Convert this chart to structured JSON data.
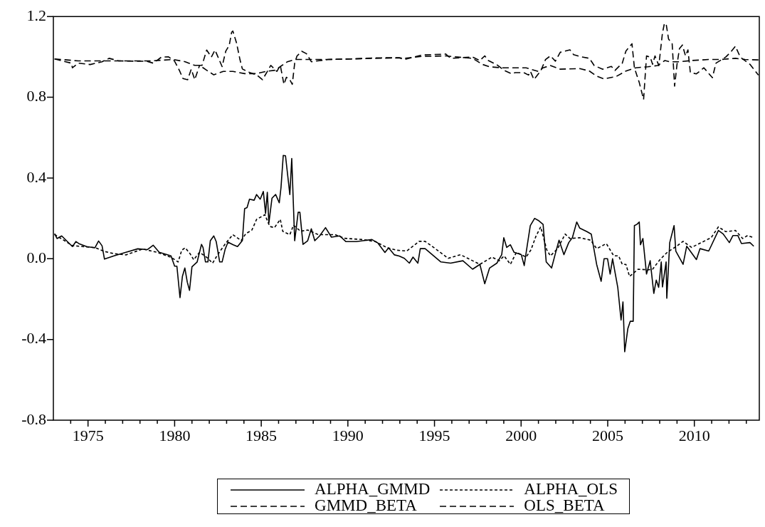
{
  "chart_data": {
    "type": "line",
    "xlim": [
      1973,
      2013.75
    ],
    "ylim": [
      -0.8,
      1.2
    ],
    "xticks": [
      {
        "value": 1974,
        "label": null
      },
      1975,
      {
        "value": 1976,
        "label": null
      },
      {
        "value": 1977,
        "label": null
      },
      {
        "value": 1978,
        "label": null
      },
      {
        "value": 1979,
        "label": null
      },
      1980,
      {
        "value": 1981,
        "label": null
      },
      {
        "value": 1982,
        "label": null
      },
      {
        "value": 1983,
        "label": null
      },
      {
        "value": 1984,
        "label": null
      },
      1985,
      {
        "value": 1986,
        "label": null
      },
      {
        "value": 1987,
        "label": null
      },
      {
        "value": 1988,
        "label": null
      },
      {
        "value": 1989,
        "label": null
      },
      1990,
      {
        "value": 1991,
        "label": null
      },
      {
        "value": 1992,
        "label": null
      },
      {
        "value": 1993,
        "label": null
      },
      {
        "value": 1994,
        "label": null
      },
      1995,
      {
        "value": 1996,
        "label": null
      },
      {
        "value": 1997,
        "label": null
      },
      {
        "value": 1998,
        "label": null
      },
      {
        "value": 1999,
        "label": null
      },
      2000,
      {
        "value": 2001,
        "label": null
      },
      {
        "value": 2002,
        "label": null
      },
      {
        "value": 2003,
        "label": null
      },
      {
        "value": 2004,
        "label": null
      },
      2005,
      {
        "value": 2006,
        "label": null
      },
      {
        "value": 2007,
        "label": null
      },
      {
        "value": 2008,
        "label": null
      },
      {
        "value": 2009,
        "label": null
      },
      2010,
      {
        "value": 2011,
        "label": null
      },
      {
        "value": 2012,
        "label": null
      },
      {
        "value": 2013,
        "label": null
      }
    ],
    "yticks": [
      {
        "value": -0.8,
        "label": "-0.8"
      },
      {
        "value": -0.4,
        "label": "-0.4"
      },
      {
        "value": 0,
        "label": "0.0"
      },
      {
        "value": 0.4,
        "label": "0.4"
      },
      {
        "value": 0.8,
        "label": "0.8"
      },
      {
        "value": 1.2,
        "label": "1.2"
      }
    ],
    "legend": "bottom",
    "grid": false,
    "series": [
      {
        "name": "ALPHA_GMMD",
        "color": "#000000",
        "line_style": "solid",
        "x": [
          1973.07,
          1973.21,
          1973.48,
          1974.1,
          1974.3,
          1974.51,
          1974.92,
          1975.4,
          1975.61,
          1975.81,
          1975.95,
          1976.5,
          1977.19,
          1977.87,
          1978.42,
          1978.76,
          1979.11,
          1979.79,
          1980.0,
          1980.13,
          1980.31,
          1980.45,
          1980.59,
          1980.73,
          1980.86,
          1981.0,
          1981.3,
          1981.55,
          1981.64,
          1981.78,
          1981.92,
          1982.06,
          1982.26,
          1982.4,
          1982.6,
          1982.74,
          1982.92,
          1983.08,
          1983.36,
          1983.63,
          1983.91,
          1984.04,
          1984.18,
          1984.32,
          1984.59,
          1984.73,
          1984.94,
          1985.12,
          1985.25,
          1985.35,
          1985.44,
          1985.62,
          1985.83,
          1986.04,
          1986.14,
          1986.27,
          1986.4,
          1986.65,
          1986.76,
          1986.93,
          1987.13,
          1987.23,
          1987.41,
          1987.68,
          1987.89,
          1988.09,
          1988.37,
          1988.71,
          1989.05,
          1989.53,
          1989.88,
          1990.49,
          1991.39,
          1991.73,
          1992.14,
          1992.35,
          1992.69,
          1992.96,
          1993.26,
          1993.55,
          1993.76,
          1994.04,
          1994.18,
          1994.46,
          1995.37,
          1995.93,
          1996.64,
          1997.2,
          1997.62,
          1997.9,
          1998.18,
          1998.6,
          1998.88,
          1999.0,
          1999.17,
          1999.38,
          1999.59,
          2000.01,
          2000.18,
          2000.36,
          2000.53,
          2000.78,
          2000.99,
          2001.27,
          2001.45,
          2001.76,
          2001.98,
          2002.19,
          2002.47,
          2002.75,
          2002.96,
          2003.21,
          2003.38,
          2003.8,
          2004.05,
          2004.36,
          2004.62,
          2004.79,
          2004.99,
          2005.14,
          2005.28,
          2005.58,
          2005.77,
          2005.88,
          2005.98,
          2006.16,
          2006.3,
          2006.47,
          2006.54,
          2006.68,
          2006.82,
          2006.89,
          2007.03,
          2007.24,
          2007.45,
          2007.66,
          2007.8,
          2007.94,
          2008.09,
          2008.16,
          2008.37,
          2008.41,
          2008.58,
          2008.83,
          2008.93,
          2009.35,
          2009.56,
          2010.12,
          2010.33,
          2010.83,
          2011.39,
          2011.67,
          2012.02,
          2012.23,
          2012.51,
          2012.72,
          2013.21,
          2013.43
        ],
        "values": [
          0.124,
          0.1,
          0.113,
          0.06,
          0.085,
          0.073,
          0.06,
          0.054,
          0.088,
          0.064,
          -0.002,
          0.014,
          0.032,
          0.049,
          0.045,
          0.067,
          0.032,
          0.014,
          -0.037,
          -0.037,
          -0.193,
          -0.087,
          -0.046,
          -0.116,
          -0.157,
          -0.04,
          -0.016,
          0.071,
          0.055,
          -0.016,
          -0.016,
          0.089,
          0.113,
          0.085,
          -0.016,
          -0.016,
          0.048,
          0.082,
          0.07,
          0.06,
          0.09,
          0.248,
          0.253,
          0.295,
          0.29,
          0.318,
          0.295,
          0.333,
          0.224,
          0.329,
          0.177,
          0.3,
          0.318,
          0.277,
          0.353,
          0.512,
          0.51,
          0.318,
          0.497,
          0.089,
          0.23,
          0.23,
          0.071,
          0.089,
          0.148,
          0.089,
          0.113,
          0.154,
          0.107,
          0.113,
          0.085,
          0.085,
          0.095,
          0.078,
          0.031,
          0.054,
          0.019,
          0.013,
          0.002,
          -0.022,
          0.008,
          -0.022,
          0.05,
          0.05,
          -0.016,
          -0.022,
          -0.01,
          -0.052,
          -0.028,
          -0.124,
          -0.046,
          -0.022,
          0.02,
          0.104,
          0.056,
          0.069,
          0.032,
          0.02,
          -0.034,
          0.069,
          0.164,
          0.2,
          0.19,
          0.17,
          -0.016,
          -0.046,
          0.026,
          0.092,
          0.02,
          0.08,
          0.104,
          0.182,
          0.152,
          0.134,
          0.122,
          -0.028,
          -0.112,
          0.0,
          0.0,
          -0.076,
          0.0,
          -0.142,
          -0.304,
          -0.214,
          -0.461,
          -0.347,
          -0.31,
          -0.31,
          0.164,
          0.17,
          0.182,
          0.069,
          0.1,
          -0.076,
          -0.01,
          -0.172,
          -0.106,
          -0.142,
          -0.016,
          -0.14,
          -0.016,
          -0.196,
          0.08,
          0.164,
          0.038,
          -0.028,
          0.062,
          -0.004,
          0.05,
          0.038,
          0.14,
          0.122,
          0.08,
          0.115,
          0.115,
          0.075,
          0.08,
          0.062
        ]
      },
      {
        "name": "ALPHA_OLS",
        "color": "#000000",
        "line_style": "dotted",
        "x": [
          1973.07,
          1974.1,
          1975.4,
          1975.95,
          1976.5,
          1977.19,
          1978.15,
          1978.97,
          1979.79,
          1980.2,
          1980.41,
          1980.61,
          1980.89,
          1981.1,
          1981.44,
          1981.85,
          1982.19,
          1982.47,
          1982.95,
          1983.36,
          1983.84,
          1984.11,
          1984.46,
          1984.73,
          1985.21,
          1985.49,
          1985.76,
          1986.1,
          1986.24,
          1986.65,
          1986.86,
          1987.27,
          1987.68,
          1988.3,
          1989.26,
          1989.81,
          1990.84,
          1991.59,
          1992.28,
          1992.83,
          1993.4,
          1994.11,
          1994.46,
          1994.95,
          1995.79,
          1996.5,
          1997.06,
          1997.62,
          1998.32,
          1998.74,
          1999.02,
          1999.38,
          1999.73,
          2000.29,
          2000.57,
          2000.85,
          2001.13,
          2001.48,
          2001.69,
          2002.11,
          2002.54,
          2002.82,
          2003.38,
          2004.01,
          2004.36,
          2004.92,
          2005.35,
          2005.63,
          2005.84,
          2006.05,
          2006.26,
          2006.75,
          2007.31,
          2007.59,
          2008.02,
          2008.44,
          2008.98,
          2009.35,
          2009.84,
          2010.4,
          2010.97,
          2011.39,
          2011.81,
          2012.37,
          2012.79,
          2013.07,
          2013.43
        ],
        "values": [
          0.12,
          0.065,
          0.055,
          0.036,
          0.025,
          0.019,
          0.048,
          0.032,
          0.007,
          -0.016,
          0.042,
          0.054,
          0.025,
          -0.005,
          0.032,
          0.007,
          -0.022,
          0.018,
          0.077,
          0.119,
          0.09,
          0.124,
          0.142,
          0.195,
          0.218,
          0.16,
          0.154,
          0.195,
          0.136,
          0.119,
          0.166,
          0.136,
          0.142,
          0.119,
          0.119,
          0.101,
          0.095,
          0.085,
          0.054,
          0.042,
          0.038,
          0.086,
          0.086,
          0.056,
          0.002,
          0.02,
          -0.004,
          -0.028,
          0.008,
          -0.01,
          0.014,
          -0.028,
          0.032,
          0.008,
          0.044,
          0.11,
          0.158,
          0.044,
          0.014,
          0.05,
          0.122,
          0.1,
          0.104,
          0.092,
          0.05,
          0.075,
          0.014,
          0.014,
          -0.028,
          -0.028,
          -0.088,
          -0.052,
          -0.055,
          -0.052,
          -0.004,
          0.032,
          0.062,
          0.086,
          0.056,
          0.08,
          0.104,
          0.158,
          0.134,
          0.14,
          0.1,
          0.115,
          0.104
        ]
      },
      {
        "name": "GMMD_BETA",
        "color": "#000000",
        "line_style": "dashed",
        "x": [
          1973.07,
          1974.03,
          1974.1,
          1974.44,
          1975.13,
          1975.81,
          1976.22,
          1976.77,
          1978.42,
          1978.76,
          1979.24,
          1979.65,
          1979.99,
          1980.27,
          1980.48,
          1980.75,
          1980.96,
          1981.16,
          1981.44,
          1981.58,
          1981.85,
          1982.12,
          1982.33,
          1982.74,
          1982.95,
          1983.15,
          1983.29,
          1983.36,
          1983.57,
          1983.77,
          1983.91,
          1984.32,
          1984.73,
          1985.07,
          1985.35,
          1985.55,
          1985.9,
          1986.1,
          1986.31,
          1986.45,
          1986.65,
          1986.79,
          1986.93,
          1987.06,
          1987.34,
          1987.61,
          1987.89,
          1988.85,
          1990.22,
          1991.59,
          1992.96,
          1993.26,
          1994.25,
          1995.65,
          1995.93,
          1997.2,
          1997.62,
          1997.9,
          1998.11,
          1998.6,
          1999.02,
          1999.45,
          1999.66,
          2000.15,
          2000.43,
          2000.54,
          2000.74,
          2001.13,
          2001.41,
          2001.69,
          2001.98,
          2002.26,
          2002.82,
          2003.03,
          2003.38,
          2003.94,
          2004.22,
          2004.71,
          2005.21,
          2005.42,
          2005.84,
          2006.05,
          2006.4,
          2006.54,
          2006.82,
          2007.07,
          2007.24,
          2007.45,
          2007.59,
          2007.73,
          2007.95,
          2008.16,
          2008.27,
          2008.37,
          2008.51,
          2008.72,
          2008.86,
          2009.0,
          2009.14,
          2009.31,
          2009.49,
          2009.63,
          2009.77,
          2010.12,
          2010.55,
          2011.04,
          2011.25,
          2011.81,
          2012.09,
          2012.37,
          2012.65,
          2013.21,
          2013.7
        ],
        "values": [
          0.99,
          0.969,
          0.946,
          0.969,
          0.962,
          0.976,
          0.993,
          0.98,
          0.978,
          0.969,
          0.999,
          1.0,
          0.98,
          0.934,
          0.893,
          0.887,
          0.939,
          0.887,
          0.958,
          0.958,
          1.034,
          0.999,
          1.034,
          0.952,
          1.028,
          1.057,
          1.122,
          1.128,
          1.07,
          0.987,
          0.94,
          0.923,
          0.911,
          0.887,
          0.928,
          0.958,
          0.928,
          0.958,
          0.864,
          0.899,
          0.887,
          0.864,
          0.969,
          1.004,
          1.028,
          1.016,
          0.976,
          0.987,
          0.99,
          0.995,
          0.996,
          0.987,
          1.009,
          1.014,
          0.993,
          0.999,
          0.982,
          1.005,
          0.982,
          0.961,
          0.933,
          0.916,
          0.922,
          0.922,
          0.91,
          0.928,
          0.888,
          0.93,
          0.987,
          1.005,
          0.979,
          1.023,
          1.035,
          1.011,
          1.002,
          0.993,
          0.957,
          0.939,
          0.953,
          0.933,
          0.969,
          1.029,
          1.065,
          0.946,
          0.873,
          0.789,
          1.005,
          0.999,
          0.963,
          1.005,
          0.957,
          1.119,
          1.165,
          1.165,
          1.089,
          1.065,
          0.855,
          0.963,
          1.041,
          1.059,
          1.005,
          1.035,
          0.922,
          0.916,
          0.946,
          0.897,
          0.969,
          0.999,
          1.023,
          1.053,
          0.999,
          0.963,
          0.91
        ]
      },
      {
        "name": "OLS_BETA",
        "color": "#000000",
        "line_style": "dashed",
        "x": [
          1973.07,
          1974.44,
          1976.5,
          1978.56,
          1979.93,
          1980.61,
          1981.16,
          1981.44,
          1981.85,
          1982.26,
          1982.81,
          1983.36,
          1984.04,
          1984.73,
          1985.28,
          1985.83,
          1986.1,
          1986.51,
          1986.93,
          1987.75,
          1988.85,
          1990.22,
          1991.59,
          1992.96,
          1993.26,
          1994.25,
          1995.65,
          1996.36,
          1997.2,
          1997.76,
          1998.18,
          1998.88,
          1999.73,
          2000.29,
          2000.99,
          2001.27,
          2001.69,
          2002.26,
          2003.38,
          2003.94,
          2004.36,
          2004.79,
          2005.49,
          2006.05,
          2006.61,
          2007.31,
          2007.88,
          2008.3,
          2008.58,
          2009.14,
          2009.84,
          2010.83,
          2011.53,
          2012.37,
          2012.93,
          2013.7
        ],
        "values": [
          0.99,
          0.98,
          0.98,
          0.98,
          0.987,
          0.976,
          0.958,
          0.958,
          0.934,
          0.911,
          0.928,
          0.928,
          0.917,
          0.917,
          0.928,
          0.934,
          0.952,
          0.976,
          0.987,
          0.987,
          0.987,
          0.99,
          0.993,
          0.995,
          0.993,
          1.002,
          1.005,
          0.999,
          0.993,
          0.963,
          0.951,
          0.946,
          0.946,
          0.946,
          0.928,
          0.946,
          0.957,
          0.939,
          0.942,
          0.93,
          0.905,
          0.891,
          0.903,
          0.93,
          0.946,
          0.951,
          0.957,
          0.982,
          0.976,
          0.976,
          0.982,
          0.987,
          0.987,
          0.993,
          0.987,
          0.985
        ]
      }
    ]
  }
}
